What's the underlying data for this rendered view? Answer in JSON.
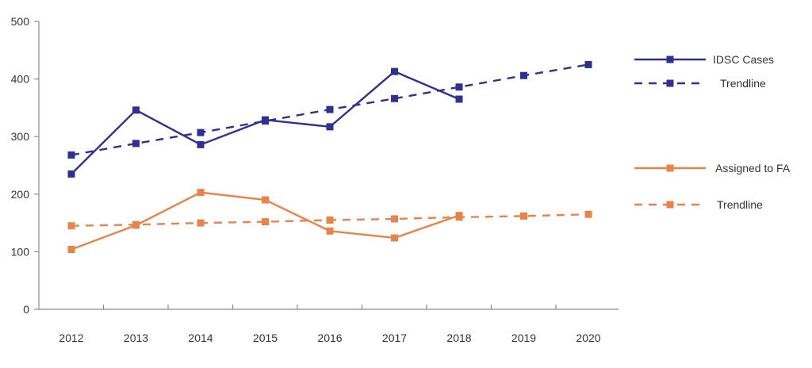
{
  "chart_data": {
    "type": "line",
    "categories": [
      "2012",
      "2013",
      "2014",
      "2015",
      "2016",
      "2017",
      "2018",
      "2019",
      "2020"
    ],
    "ylim": [
      0,
      500
    ],
    "yticks": [
      0,
      100,
      200,
      300,
      400,
      500
    ],
    "grid": false,
    "legend_position": "right",
    "series": [
      {
        "name": "IDSC Cases",
        "color": "#2E3192",
        "style": "solid",
        "values": [
          235,
          346,
          286,
          329,
          317,
          413,
          365,
          null,
          null
        ]
      },
      {
        "name": "Trendline",
        "color": "#2E3192",
        "style": "dashed",
        "values": [
          268,
          288,
          307,
          327,
          347,
          366,
          386,
          406,
          425
        ]
      },
      {
        "name": "Assigned to FA",
        "color": "#E8834A",
        "style": "solid",
        "values": [
          104,
          146,
          203,
          190,
          136,
          124,
          163,
          null,
          null
        ]
      },
      {
        "name": "Trendline",
        "color": "#E8834A",
        "style": "dashed",
        "values": [
          145,
          147,
          150,
          152,
          155,
          157,
          160,
          162,
          165
        ]
      }
    ]
  }
}
